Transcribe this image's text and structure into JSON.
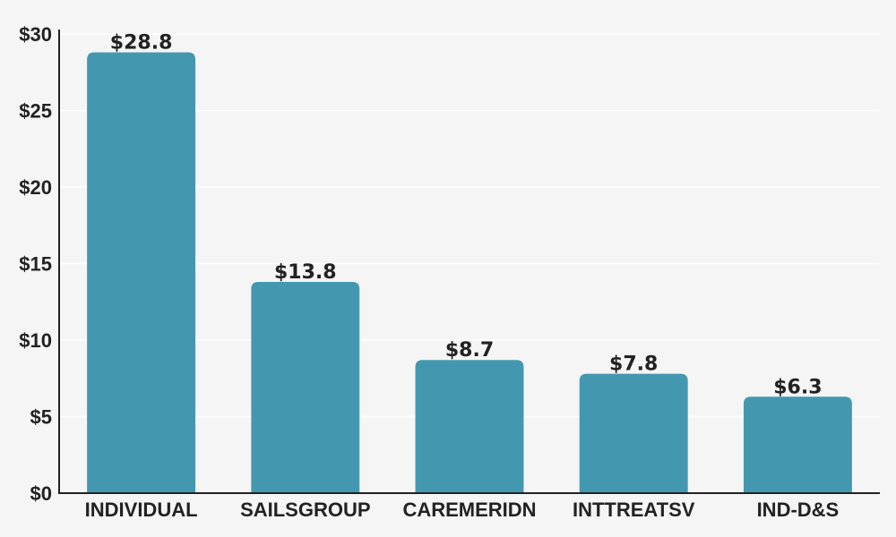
{
  "chart_data": {
    "type": "bar",
    "categories": [
      "INDIVIDUAL",
      "SAILSGROUP",
      "CAREMERIDN",
      "INTTREATSV",
      "IND-D&S"
    ],
    "values": [
      28.8,
      13.8,
      8.7,
      7.8,
      6.3
    ],
    "data_labels": [
      "$28.8",
      "$13.8",
      "$8.7",
      "$7.8",
      "$6.3"
    ],
    "title": "",
    "xlabel": "",
    "ylabel": "",
    "ylim": [
      0,
      30
    ],
    "y_ticks": [
      0,
      5,
      10,
      15,
      20,
      25,
      30
    ],
    "y_tick_labels": [
      "$0",
      "$5",
      "$10",
      "$15",
      "$20",
      "$25",
      "$30"
    ],
    "grid": true,
    "legend": "none",
    "bar_color": "#4398b0",
    "background_color": "#f5f5f5"
  }
}
